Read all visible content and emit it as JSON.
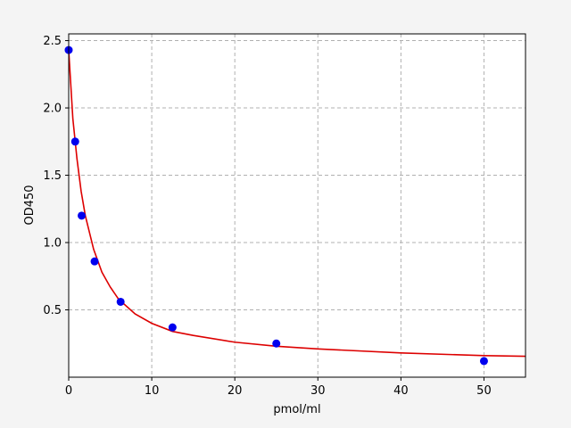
{
  "chart_data": {
    "type": "scatter",
    "title": "",
    "xlabel": "pmol/ml",
    "ylabel": "OD450",
    "xlim": [
      0,
      55
    ],
    "ylim": [
      0.0,
      2.55
    ],
    "x_ticks": [
      0,
      10,
      20,
      30,
      40,
      50
    ],
    "y_ticks": [
      0.5,
      1.0,
      1.5,
      2.0,
      2.5
    ],
    "x_tick_labels": [
      "0",
      "10",
      "20",
      "30",
      "40",
      "50"
    ],
    "y_tick_labels": [
      "0.5",
      "1.0",
      "1.5",
      "2.0",
      "2.5"
    ],
    "grid": true,
    "legend": "none",
    "series": [
      {
        "kind": "points",
        "color": "#0000ee",
        "x": [
          0,
          0.78,
          1.56,
          3.12,
          6.25,
          12.5,
          25,
          50
        ],
        "y": [
          2.43,
          1.75,
          1.2,
          0.86,
          0.56,
          0.37,
          0.25,
          0.12
        ]
      },
      {
        "kind": "fit-curve",
        "color": "#dd0000",
        "x": [
          0,
          0.5,
          1,
          1.5,
          2,
          3,
          4,
          5,
          6,
          8,
          10,
          12.5,
          15,
          20,
          25,
          30,
          40,
          50,
          55
        ],
        "y": [
          2.43,
          1.92,
          1.62,
          1.38,
          1.2,
          0.95,
          0.78,
          0.67,
          0.58,
          0.47,
          0.4,
          0.34,
          0.31,
          0.26,
          0.23,
          0.21,
          0.18,
          0.16,
          0.155
        ]
      }
    ]
  }
}
